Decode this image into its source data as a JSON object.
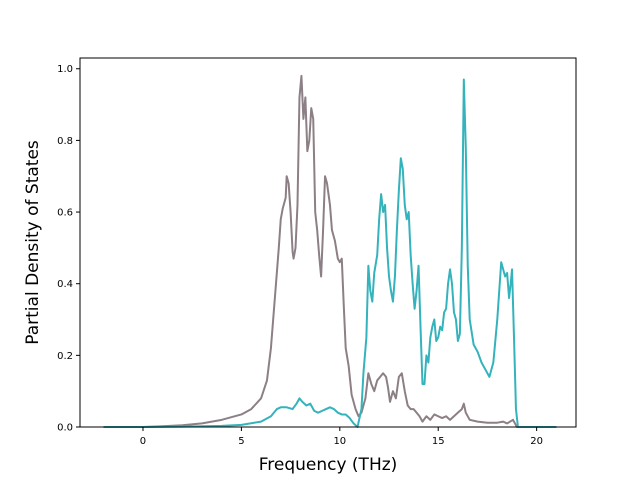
{
  "chart_data": {
    "type": "line",
    "title": "",
    "xlabel": "Frequency (THz)",
    "ylabel": "Partial Density of States",
    "xlim": [
      -3.2,
      22.0
    ],
    "ylim": [
      0.0,
      1.03
    ],
    "xticks": [
      0,
      5,
      10,
      15,
      20
    ],
    "yticks": [
      0.0,
      0.2,
      0.4,
      0.6,
      0.8,
      1.0
    ],
    "xtick_labels": [
      "0",
      "5",
      "10",
      "15",
      "20"
    ],
    "ytick_labels": [
      "0.0",
      "0.2",
      "0.4",
      "0.6",
      "0.8",
      "1.0"
    ],
    "grid": false,
    "legend": "none",
    "series": [
      {
        "color": "#8c7f86",
        "points": [
          [
            -2.0,
            0.0
          ],
          [
            0.0,
            0.0
          ],
          [
            1.0,
            0.002
          ],
          [
            2.0,
            0.005
          ],
          [
            3.0,
            0.01
          ],
          [
            4.0,
            0.02
          ],
          [
            5.0,
            0.035
          ],
          [
            5.5,
            0.05
          ],
          [
            6.0,
            0.08
          ],
          [
            6.3,
            0.13
          ],
          [
            6.5,
            0.22
          ],
          [
            6.7,
            0.36
          ],
          [
            6.9,
            0.5
          ],
          [
            7.0,
            0.58
          ],
          [
            7.1,
            0.61
          ],
          [
            7.25,
            0.64
          ],
          [
            7.3,
            0.7
          ],
          [
            7.4,
            0.68
          ],
          [
            7.5,
            0.6
          ],
          [
            7.6,
            0.49
          ],
          [
            7.65,
            0.47
          ],
          [
            7.75,
            0.5
          ],
          [
            7.85,
            0.62
          ],
          [
            7.95,
            0.92
          ],
          [
            8.05,
            0.98
          ],
          [
            8.15,
            0.86
          ],
          [
            8.25,
            0.92
          ],
          [
            8.35,
            0.77
          ],
          [
            8.45,
            0.8
          ],
          [
            8.55,
            0.89
          ],
          [
            8.65,
            0.86
          ],
          [
            8.75,
            0.6
          ],
          [
            8.85,
            0.55
          ],
          [
            8.95,
            0.48
          ],
          [
            9.05,
            0.42
          ],
          [
            9.15,
            0.55
          ],
          [
            9.25,
            0.7
          ],
          [
            9.35,
            0.68
          ],
          [
            9.5,
            0.62
          ],
          [
            9.6,
            0.55
          ],
          [
            9.75,
            0.52
          ],
          [
            9.9,
            0.47
          ],
          [
            10.0,
            0.46
          ],
          [
            10.1,
            0.47
          ],
          [
            10.2,
            0.34
          ],
          [
            10.3,
            0.22
          ],
          [
            10.45,
            0.17
          ],
          [
            10.6,
            0.09
          ],
          [
            10.8,
            0.05
          ],
          [
            10.95,
            0.03
          ],
          [
            11.1,
            0.04
          ],
          [
            11.3,
            0.08
          ],
          [
            11.45,
            0.15
          ],
          [
            11.6,
            0.12
          ],
          [
            11.75,
            0.1
          ],
          [
            11.9,
            0.13
          ],
          [
            12.05,
            0.14
          ],
          [
            12.2,
            0.15
          ],
          [
            12.35,
            0.14
          ],
          [
            12.45,
            0.11
          ],
          [
            12.55,
            0.07
          ],
          [
            12.7,
            0.1
          ],
          [
            12.85,
            0.08
          ],
          [
            13.0,
            0.14
          ],
          [
            13.15,
            0.15
          ],
          [
            13.3,
            0.1
          ],
          [
            13.45,
            0.06
          ],
          [
            13.6,
            0.05
          ],
          [
            13.75,
            0.05
          ],
          [
            13.9,
            0.04
          ],
          [
            14.05,
            0.03
          ],
          [
            14.2,
            0.015
          ],
          [
            14.4,
            0.03
          ],
          [
            14.6,
            0.02
          ],
          [
            14.8,
            0.035
          ],
          [
            15.0,
            0.03
          ],
          [
            15.2,
            0.025
          ],
          [
            15.4,
            0.03
          ],
          [
            15.6,
            0.02
          ],
          [
            15.8,
            0.03
          ],
          [
            16.0,
            0.04
          ],
          [
            16.2,
            0.05
          ],
          [
            16.3,
            0.065
          ],
          [
            16.4,
            0.04
          ],
          [
            16.6,
            0.02
          ],
          [
            17.0,
            0.015
          ],
          [
            17.5,
            0.012
          ],
          [
            18.0,
            0.012
          ],
          [
            18.3,
            0.015
          ],
          [
            18.5,
            0.01
          ],
          [
            18.8,
            0.02
          ],
          [
            18.9,
            0.01
          ],
          [
            19.0,
            0.0
          ],
          [
            20.0,
            0.0
          ],
          [
            21.0,
            0.0
          ]
        ]
      },
      {
        "color": "#34b3bc",
        "points": [
          [
            -2.0,
            0.0
          ],
          [
            0.0,
            0.0
          ],
          [
            2.0,
            0.001
          ],
          [
            4.0,
            0.003
          ],
          [
            5.0,
            0.006
          ],
          [
            6.0,
            0.015
          ],
          [
            6.5,
            0.03
          ],
          [
            6.8,
            0.05
          ],
          [
            7.0,
            0.055
          ],
          [
            7.3,
            0.055
          ],
          [
            7.6,
            0.05
          ],
          [
            7.8,
            0.065
          ],
          [
            7.95,
            0.08
          ],
          [
            8.1,
            0.07
          ],
          [
            8.3,
            0.06
          ],
          [
            8.5,
            0.065
          ],
          [
            8.7,
            0.045
          ],
          [
            8.9,
            0.04
          ],
          [
            9.1,
            0.045
          ],
          [
            9.3,
            0.05
          ],
          [
            9.5,
            0.055
          ],
          [
            9.7,
            0.05
          ],
          [
            9.9,
            0.04
          ],
          [
            10.1,
            0.035
          ],
          [
            10.3,
            0.035
          ],
          [
            10.5,
            0.025
          ],
          [
            10.7,
            0.01
          ],
          [
            10.9,
            0.0
          ],
          [
            11.1,
            0.05
          ],
          [
            11.2,
            0.15
          ],
          [
            11.35,
            0.25
          ],
          [
            11.45,
            0.45
          ],
          [
            11.55,
            0.38
          ],
          [
            11.65,
            0.35
          ],
          [
            11.75,
            0.43
          ],
          [
            11.9,
            0.48
          ],
          [
            12.0,
            0.58
          ],
          [
            12.1,
            0.65
          ],
          [
            12.2,
            0.6
          ],
          [
            12.3,
            0.62
          ],
          [
            12.4,
            0.5
          ],
          [
            12.5,
            0.42
          ],
          [
            12.6,
            0.38
          ],
          [
            12.7,
            0.35
          ],
          [
            12.8,
            0.42
          ],
          [
            12.9,
            0.55
          ],
          [
            13.0,
            0.66
          ],
          [
            13.1,
            0.75
          ],
          [
            13.2,
            0.72
          ],
          [
            13.3,
            0.62
          ],
          [
            13.4,
            0.58
          ],
          [
            13.5,
            0.6
          ],
          [
            13.6,
            0.48
          ],
          [
            13.7,
            0.4
          ],
          [
            13.8,
            0.33
          ],
          [
            13.9,
            0.38
          ],
          [
            14.0,
            0.45
          ],
          [
            14.1,
            0.28
          ],
          [
            14.2,
            0.12
          ],
          [
            14.3,
            0.12
          ],
          [
            14.4,
            0.2
          ],
          [
            14.5,
            0.18
          ],
          [
            14.6,
            0.25
          ],
          [
            14.7,
            0.28
          ],
          [
            14.8,
            0.3
          ],
          [
            14.9,
            0.24
          ],
          [
            15.0,
            0.25
          ],
          [
            15.1,
            0.28
          ],
          [
            15.2,
            0.27
          ],
          [
            15.3,
            0.32
          ],
          [
            15.4,
            0.33
          ],
          [
            15.5,
            0.4
          ],
          [
            15.6,
            0.44
          ],
          [
            15.7,
            0.4
          ],
          [
            15.8,
            0.32
          ],
          [
            15.9,
            0.3
          ],
          [
            16.0,
            0.24
          ],
          [
            16.1,
            0.26
          ],
          [
            16.2,
            0.5
          ],
          [
            16.3,
            0.97
          ],
          [
            16.4,
            0.78
          ],
          [
            16.5,
            0.45
          ],
          [
            16.6,
            0.3
          ],
          [
            16.8,
            0.23
          ],
          [
            17.0,
            0.21
          ],
          [
            17.2,
            0.18
          ],
          [
            17.4,
            0.16
          ],
          [
            17.6,
            0.14
          ],
          [
            17.8,
            0.18
          ],
          [
            18.0,
            0.3
          ],
          [
            18.2,
            0.46
          ],
          [
            18.3,
            0.44
          ],
          [
            18.4,
            0.42
          ],
          [
            18.5,
            0.43
          ],
          [
            18.6,
            0.36
          ],
          [
            18.7,
            0.41
          ],
          [
            18.75,
            0.44
          ],
          [
            18.85,
            0.25
          ],
          [
            18.95,
            0.05
          ],
          [
            19.05,
            0.0
          ],
          [
            20.0,
            0.0
          ],
          [
            21.0,
            0.0
          ]
        ]
      }
    ]
  }
}
